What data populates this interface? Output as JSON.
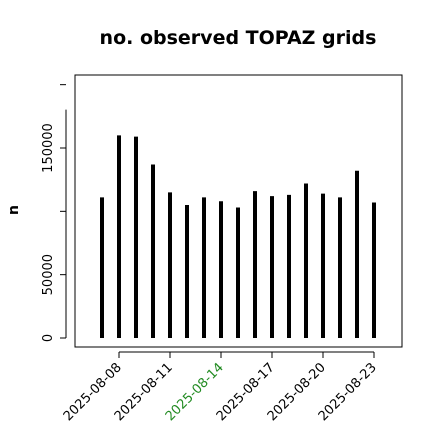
{
  "chart_data": {
    "type": "bar",
    "title": "no. observed TOPAZ grids",
    "xlabel": "",
    "ylabel": "n",
    "ylim": [
      0,
      200000
    ],
    "yticks": [
      0,
      50000,
      150000
    ],
    "ytick_labels": [
      "0",
      "50000",
      "150000"
    ],
    "grid": false,
    "categories": [
      "2025-08-07",
      "2025-08-08",
      "2025-08-09",
      "2025-08-10",
      "2025-08-11",
      "2025-08-12",
      "2025-08-13",
      "2025-08-14",
      "2025-08-15",
      "2025-08-16",
      "2025-08-17",
      "2025-08-18",
      "2025-08-19",
      "2025-08-20",
      "2025-08-21",
      "2025-08-22",
      "2025-08-23"
    ],
    "values": [
      111000,
      160000,
      159000,
      137000,
      115000,
      105000,
      111000,
      108000,
      103000,
      116000,
      112000,
      113000,
      122000,
      114000,
      111000,
      132000,
      107000
    ],
    "xtick_labels": [
      "2025-08-08",
      "2025-08-11",
      "2025-08-14",
      "2025-08-17",
      "2025-08-20",
      "2025-08-23"
    ],
    "xtick_colors": [
      "#000000",
      "#000000",
      "#228b22",
      "#000000",
      "#000000",
      "#000000"
    ],
    "bar_color": "#000000"
  }
}
